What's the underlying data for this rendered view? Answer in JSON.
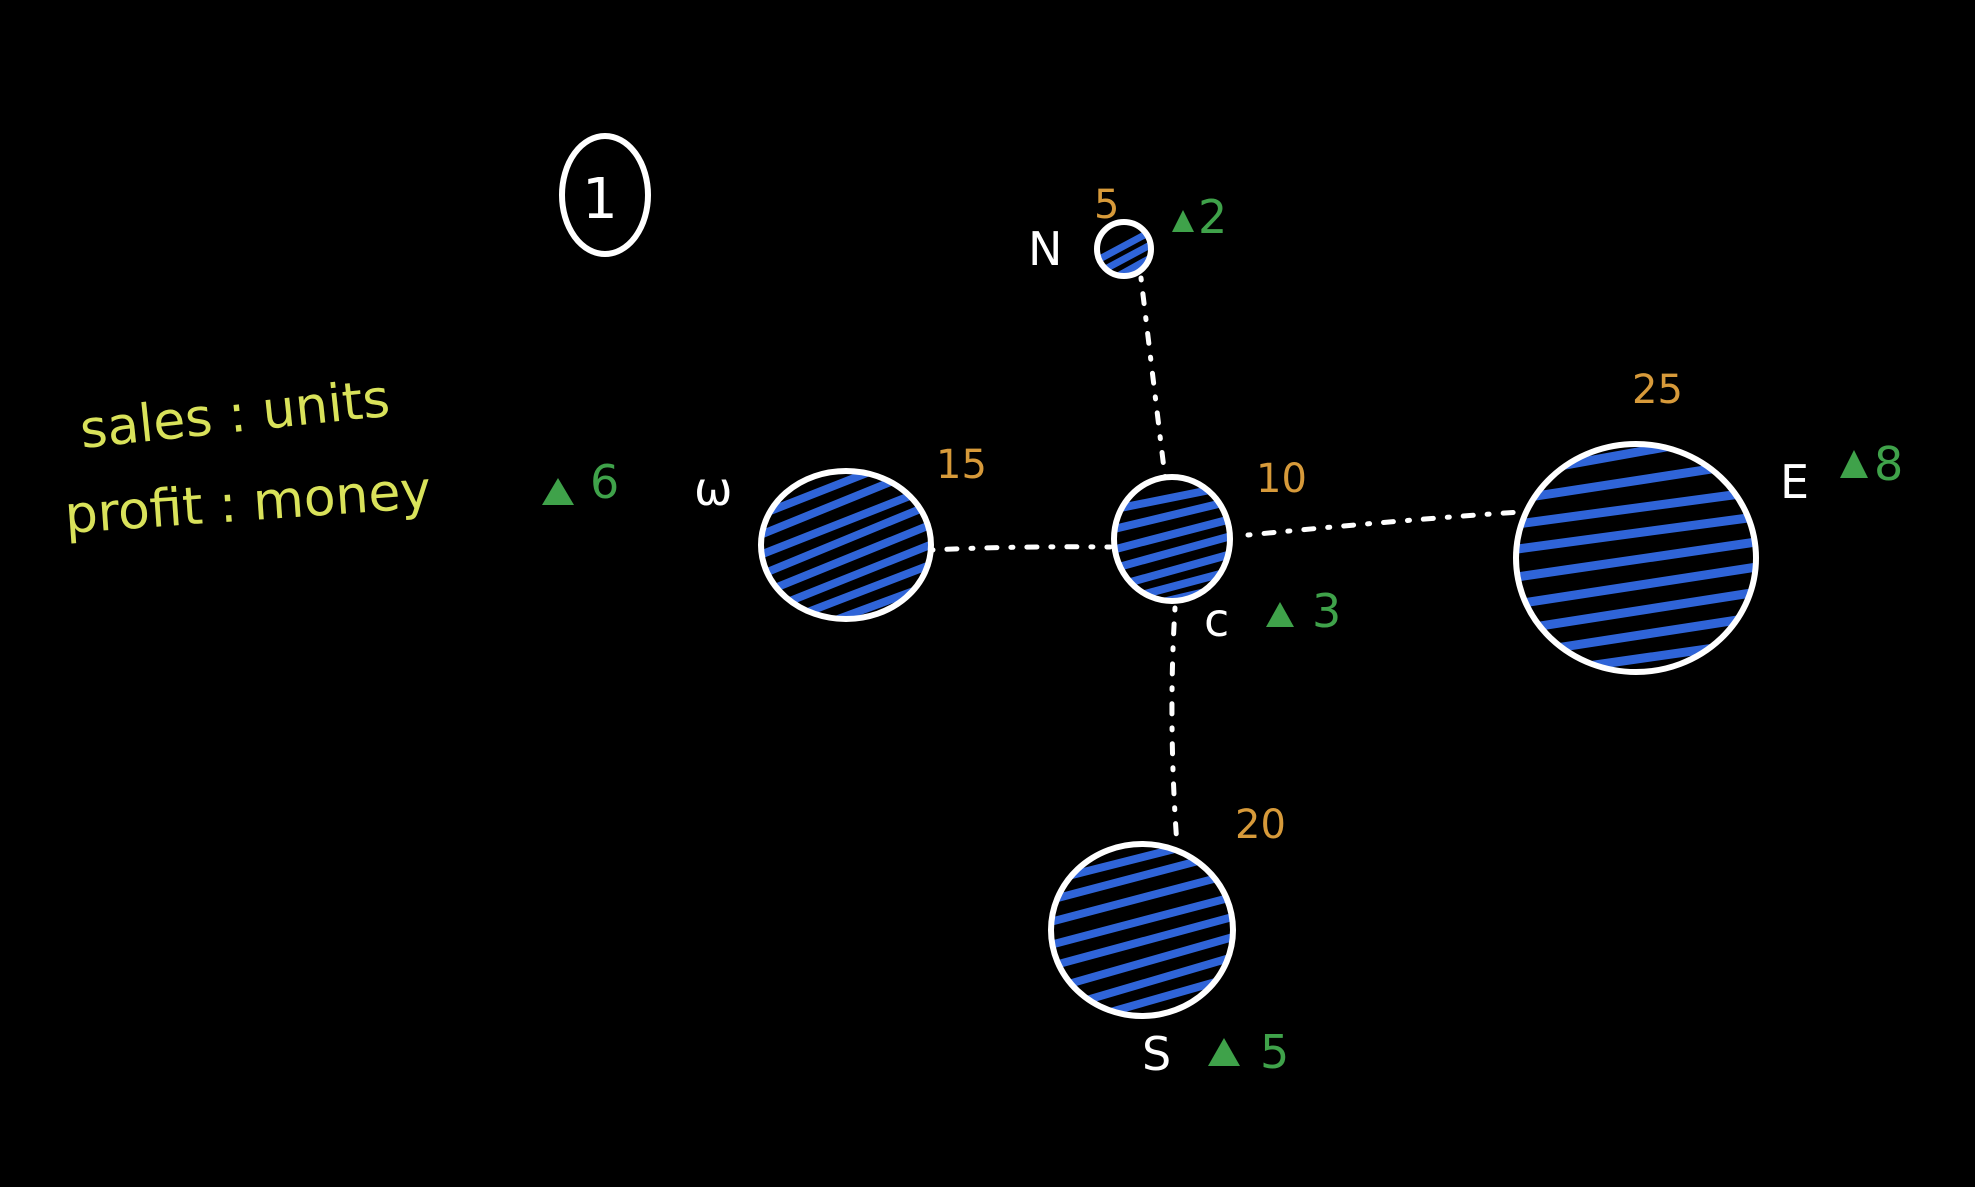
{
  "diagram": {
    "number": "1",
    "legend": {
      "line1": "sales : units",
      "line2": "profit : money"
    },
    "colors": {
      "background": "#000000",
      "stroke": "#ffffff",
      "hatch": "#2f64d8",
      "sales": "#d79a3a",
      "profit": "#3fa24a",
      "legend": "#d9e25a"
    },
    "nodes": [
      {
        "id": "N",
        "label": "N",
        "sales": "5",
        "profit": "2"
      },
      {
        "id": "W",
        "label": "ω",
        "sales": "15",
        "profit": "6"
      },
      {
        "id": "C",
        "label": "c",
        "sales": "10",
        "profit": "3"
      },
      {
        "id": "E",
        "label": "E",
        "sales": "25",
        "profit": "8"
      },
      {
        "id": "S",
        "label": "S",
        "sales": "20",
        "profit": "5"
      }
    ],
    "edges": [
      {
        "from": "C",
        "to": "N"
      },
      {
        "from": "C",
        "to": "W"
      },
      {
        "from": "C",
        "to": "E"
      },
      {
        "from": "C",
        "to": "S"
      }
    ]
  }
}
